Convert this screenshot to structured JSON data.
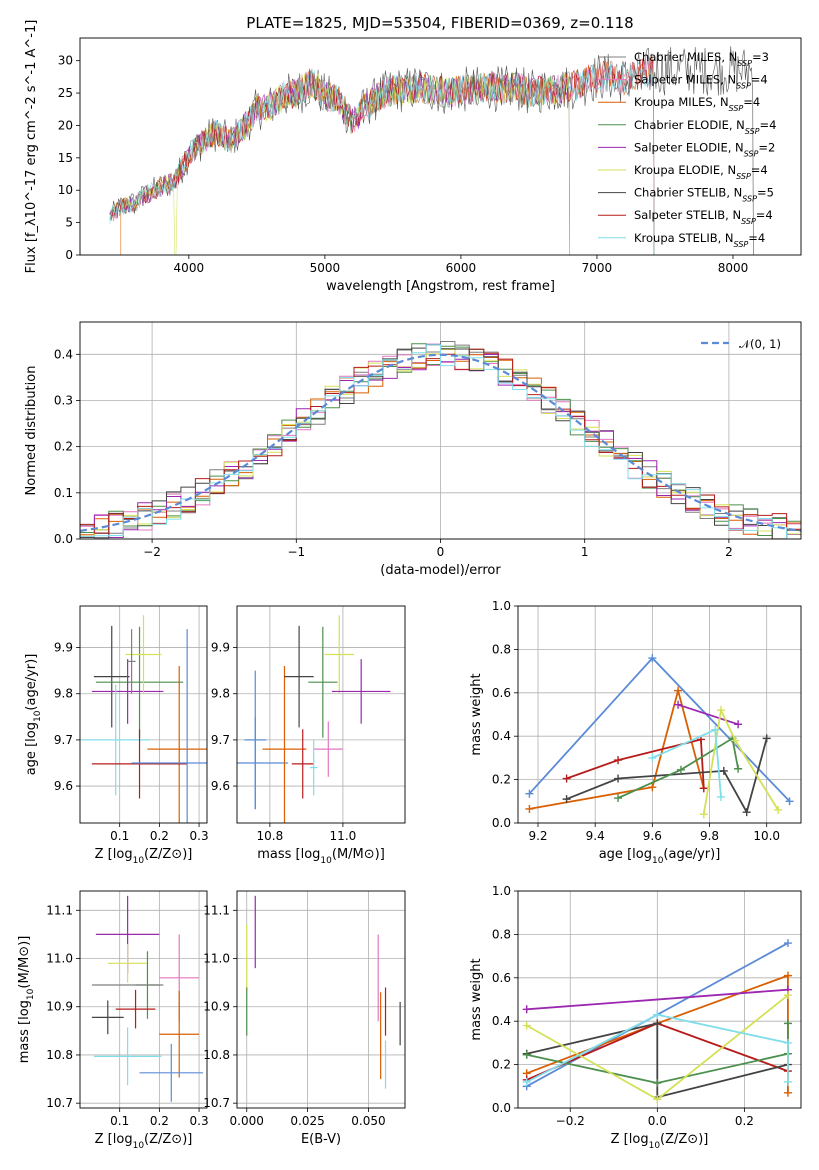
{
  "figure_title": "PLATE=1825, MJD=53504, FIBERID=0369, z=0.118",
  "colors": {
    "Chabrier MILES": "#7f7f7f",
    "Salpeter MILES": "#e377c2",
    "Kroupa MILES": "#d95f02",
    "Chabrier ELODIE": "#4d8f4d",
    "Salpeter ELODIE": "#9c27b0",
    "Kroupa ELODIE": "#d4e157",
    "Chabrier STELIB": "#444444",
    "Salpeter STELIB": "#b71c1c",
    "Kroupa STELIB": "#80deea",
    "mass_series_blue": "#5b8bd6",
    "gaussian": "#5b8bd6"
  },
  "chart_data": [
    {
      "type": "line",
      "panel": "spectrum",
      "xlabel": "wavelength [Angstrom, rest frame]",
      "ylabel": "Flux [f_λ10^-17 erg cm^-2 s^-1 A^-1]",
      "xlim": [
        3200,
        8500
      ],
      "ylim": [
        0,
        33.5
      ],
      "xticks": [
        "4000",
        "5000",
        "6000",
        "7000",
        "8000"
      ],
      "yticks": [
        "0",
        "5",
        "10",
        "15",
        "20",
        "25",
        "30"
      ],
      "grid": false,
      "legend_position": "right",
      "continuum": {
        "x": [
          3400,
          3500,
          3600,
          3700,
          3800,
          3900,
          4000,
          4100,
          4200,
          4300,
          4400,
          4500,
          4600,
          4700,
          4800,
          4900,
          5000,
          5100,
          5200,
          5300,
          5400,
          5500,
          5600,
          5700,
          5800,
          5900,
          6000,
          6100,
          6200,
          6300,
          6400,
          6500,
          6600,
          6700,
          6800,
          6900,
          7000,
          7100,
          7200,
          7300,
          7400,
          7500
        ],
        "y": [
          5.5,
          7.5,
          8.0,
          9.5,
          10.5,
          11.5,
          15.5,
          17.5,
          19.0,
          17.5,
          19.5,
          22.5,
          23.0,
          24.5,
          25.0,
          26.5,
          24.5,
          24.0,
          20.5,
          23.0,
          24.5,
          25.5,
          25.5,
          26.0,
          25.5,
          25.0,
          25.5,
          25.5,
          26.0,
          25.5,
          26.0,
          25.0,
          25.5,
          25.5,
          26.0,
          26.5,
          27.5,
          27.5,
          27.0,
          27.5,
          28.5,
          28.5
        ]
      },
      "series": [
        {
          "name": "Chabrier MILES, N_SSP=3",
          "line": "thin",
          "x_end": 7420
        },
        {
          "name": "Salpeter MILES, N_SSP=4",
          "x_end": 7420
        },
        {
          "name": "Kroupa MILES, N_SSP=4",
          "x_start": 3500,
          "x_end": 7420
        },
        {
          "name": "Chabrier ELODIE, N_SSP=4",
          "x_end": 6800
        },
        {
          "name": "Salpeter ELODIE, N_SSP=2",
          "x_end": 6800
        },
        {
          "name": "Kroupa ELODIE, N_SSP=4",
          "x_end": 6800,
          "dip_at": 3900
        },
        {
          "name": "Chabrier STELIB, N_SSP=5",
          "x_end": 8150
        },
        {
          "name": "Salpeter STELIB, N_SSP=4",
          "x_end": 7420
        },
        {
          "name": "Kroupa STELIB, N_SSP=4",
          "x_end": 7420
        }
      ]
    },
    {
      "type": "line",
      "panel": "residuals",
      "xlabel": "(data-model)/error",
      "ylabel": "Normed distribution",
      "xlim": [
        -2.5,
        2.5
      ],
      "ylim": [
        0,
        0.47
      ],
      "xticks": [
        "−2",
        "−1",
        "0",
        "1",
        "2"
      ],
      "yticks": [
        "0.0",
        "0.1",
        "0.2",
        "0.3",
        "0.4"
      ],
      "grid": true,
      "legend": "𝒩(0, 1)",
      "legend_position": "top-right",
      "histogram_style": "step, one per model, 0.1-wide bins"
    },
    {
      "type": "scatter",
      "panel": "age-vs-Z",
      "xlabel": "Z [log10(Z/Z⊙)]",
      "ylabel": "age [log10(age/yr)]",
      "xlim": [
        0.0,
        0.32
      ],
      "ylim": [
        9.52,
        9.99
      ],
      "xticks": [
        "0.1",
        "0.2",
        "0.3"
      ],
      "yticks": [
        "9.6",
        "9.7",
        "9.8",
        "9.9"
      ],
      "grid": true,
      "points": [
        {
          "color": "Chabrier STELIB",
          "x": 0.08,
          "y": 9.837,
          "xerr": 0.045,
          "yerr": 0.11
        },
        {
          "color": "Chabrier ELODIE",
          "x": 0.15,
          "y": 9.825,
          "xerr": 0.11,
          "yerr": 0.12
        },
        {
          "color": "Salpeter ELODIE",
          "x": 0.12,
          "y": 9.805,
          "xerr": 0.09,
          "yerr": 0.07
        },
        {
          "color": "Kroupa ELODIE",
          "x": 0.16,
          "y": 9.885,
          "xerr": 0.045,
          "yerr": 0.085
        },
        {
          "color": "Chabrier MILES",
          "x": 0.13,
          "y": 9.87,
          "xerr": 0.01,
          "yerr": 0.07
        },
        {
          "color": "Kroupa STELIB",
          "x": 0.09,
          "y": 9.7,
          "xerr": 0.085,
          "yerr": 0.12
        },
        {
          "color": "Kroupa MILES",
          "x": 0.25,
          "y": 9.68,
          "xerr": 0.08,
          "yerr": 0.18
        },
        {
          "color": "Salpeter STELIB",
          "x": 0.15,
          "y": 9.648,
          "xerr": 0.12,
          "yerr": 0.075
        },
        {
          "color": "mass_series_blue",
          "x": 0.27,
          "y": 9.65,
          "xerr": 0.14,
          "yerr": 0.29
        }
      ]
    },
    {
      "type": "scatter",
      "panel": "age-vs-mass",
      "xlabel": "mass [log10(M/M⊙)]",
      "ylabel": "",
      "xlim": [
        10.71,
        11.17
      ],
      "ylim": [
        9.52,
        9.99
      ],
      "xticks": [
        "10.8",
        "11.0"
      ],
      "yticks": [
        "9.6",
        "9.7",
        "9.8",
        "9.9"
      ],
      "grid": true,
      "points": [
        {
          "color": "mass_series_blue",
          "x": 10.76,
          "y": 9.7,
          "xerr": 0.03,
          "yerr": 0.15
        },
        {
          "color": "mass_series_blue",
          "x": 10.76,
          "y": 9.65,
          "xerr": 0.09,
          "yerr": 0.1
        },
        {
          "color": "Kroupa MILES",
          "x": 10.84,
          "y": 9.68,
          "xerr": 0.06,
          "yerr": 0.18
        },
        {
          "color": "Salpeter STELIB",
          "x": 10.89,
          "y": 9.648,
          "xerr": 0.03,
          "yerr": 0.075
        },
        {
          "color": "Chabrier STELIB",
          "x": 10.88,
          "y": 9.837,
          "xerr": 0.04,
          "yerr": 0.11
        },
        {
          "color": "Chabrier ELODIE",
          "x": 10.945,
          "y": 9.825,
          "xerr": 0.04,
          "yerr": 0.12
        },
        {
          "color": "Kroupa ELODIE",
          "x": 10.99,
          "y": 9.885,
          "xerr": 0.04,
          "yerr": 0.085
        },
        {
          "color": "Salpeter ELODIE",
          "x": 11.05,
          "y": 9.805,
          "xerr": 0.08,
          "yerr": 0.07
        },
        {
          "color": "Salpeter MILES",
          "x": 10.96,
          "y": 9.68,
          "xerr": 0.04,
          "yerr": 0.06
        },
        {
          "color": "Kroupa STELIB",
          "x": 10.92,
          "y": 9.64,
          "xerr": 0.01,
          "yerr": 0.06
        }
      ]
    },
    {
      "type": "line",
      "panel": "mass-weight-vs-age",
      "xlabel": "age [log10(age/yr)]",
      "ylabel": "mass weight",
      "xlim": [
        9.13,
        10.12
      ],
      "ylim": [
        0,
        1.0
      ],
      "xticks": [
        "9.2",
        "9.4",
        "9.6",
        "9.8",
        "10.0"
      ],
      "yticks": [
        "0.0",
        "0.2",
        "0.4",
        "0.6",
        "0.8",
        "1.0"
      ],
      "grid": true,
      "series": [
        {
          "color": "mass_series_blue",
          "x": [
            9.17,
            9.6,
            10.08
          ],
          "y": [
            0.135,
            0.76,
            0.1
          ]
        },
        {
          "color": "Kroupa MILES",
          "x": [
            9.17,
            9.6,
            9.69,
            9.78
          ],
          "y": [
            0.065,
            0.165,
            0.61,
            0.16
          ]
        },
        {
          "color": "Salpeter STELIB",
          "x": [
            9.3,
            9.48,
            9.77,
            9.78
          ],
          "y": [
            0.205,
            0.29,
            0.385,
            0.16
          ]
        },
        {
          "color": "Chabrier STELIB",
          "x": [
            9.3,
            9.48,
            9.85,
            9.93,
            10.0
          ],
          "y": [
            0.11,
            0.205,
            0.24,
            0.05,
            0.39
          ]
        },
        {
          "color": "Chabrier ELODIE",
          "x": [
            9.48,
            9.7,
            9.88,
            9.9
          ],
          "y": [
            0.115,
            0.245,
            0.39,
            0.25
          ]
        },
        {
          "color": "Salpeter ELODIE",
          "x": [
            9.69,
            9.9
          ],
          "y": [
            0.545,
            0.455
          ]
        },
        {
          "color": "Kroupa ELODIE",
          "x": [
            9.78,
            9.84,
            9.89,
            10.04
          ],
          "y": [
            0.04,
            0.52,
            0.38,
            0.06
          ]
        },
        {
          "color": "Kroupa STELIB",
          "x": [
            9.6,
            9.82,
            9.84
          ],
          "y": [
            0.3,
            0.43,
            0.12
          ]
        }
      ]
    },
    {
      "type": "scatter",
      "panel": "mass-vs-Z",
      "xlabel": "Z [log10(Z/Z⊙)]",
      "ylabel": "mass [log10(M/M⊙)]",
      "xlim": [
        0.0,
        0.32
      ],
      "ylim": [
        10.69,
        11.14
      ],
      "xticks": [
        "0.1",
        "0.2",
        "0.3"
      ],
      "yticks": [
        "10.7",
        "10.8",
        "10.9",
        "11.0",
        "11.1"
      ],
      "grid": true,
      "points": [
        {
          "color": "Salpeter ELODIE",
          "x": 0.12,
          "y": 11.05,
          "xerr": 0.08,
          "yerr": 0.08
        },
        {
          "color": "Kroupa ELODIE",
          "x": 0.12,
          "y": 10.99,
          "xerr": 0.05,
          "yerr": 0.04
        },
        {
          "color": "Chabrier ELODIE",
          "x": 0.17,
          "y": 10.945,
          "xerr": 0.03,
          "yerr": 0.07
        },
        {
          "color": "Salpeter MILES",
          "x": 0.25,
          "y": 10.96,
          "xerr": 0.05,
          "yerr": 0.09
        },
        {
          "color": "Chabrier MILES",
          "x": 0.12,
          "y": 10.945,
          "xerr": 0.09,
          "yerr": 0.0
        },
        {
          "color": "Salpeter STELIB",
          "x": 0.14,
          "y": 10.895,
          "xerr": 0.05,
          "yerr": 0.04
        },
        {
          "color": "Chabrier STELIB",
          "x": 0.07,
          "y": 10.878,
          "xerr": 0.04,
          "yerr": 0.035
        },
        {
          "color": "Kroupa MILES",
          "x": 0.25,
          "y": 10.843,
          "xerr": 0.05,
          "yerr": 0.09
        },
        {
          "color": "Kroupa STELIB",
          "x": 0.12,
          "y": 10.797,
          "xerr": 0.085,
          "yerr": 0.06
        },
        {
          "color": "mass_series_blue",
          "x": 0.23,
          "y": 10.763,
          "xerr": 0.08,
          "yerr": 0.06
        }
      ]
    },
    {
      "type": "scatter",
      "panel": "mass-vs-EBV",
      "xlabel": "E(B-V)",
      "ylabel": "",
      "xlim": [
        -0.004,
        0.065
      ],
      "ylim": [
        10.69,
        11.14
      ],
      "xticks": [
        "0.000",
        "0.025",
        "0.050"
      ],
      "yticks": [
        "10.7",
        "10.8",
        "10.9",
        "11.0",
        "11.1"
      ],
      "grid": true,
      "points": [
        {
          "color": "Salpeter ELODIE",
          "x": 0.0035,
          "y": 11.055,
          "yerr": 0.075
        },
        {
          "color": "Kroupa ELODIE",
          "x": 0.0,
          "y": 11.0,
          "yerr": 0.07
        },
        {
          "color": "Chabrier ELODIE",
          "x": 0.0,
          "y": 10.89,
          "yerr": 0.05
        },
        {
          "color": "Salpeter MILES",
          "x": 0.054,
          "y": 10.96,
          "yerr": 0.09
        },
        {
          "color": "Kroupa MILES",
          "x": 0.055,
          "y": 10.84,
          "yerr": 0.09
        },
        {
          "color": "Salpeter STELIB",
          "x": 0.057,
          "y": 10.89,
          "yerr": 0.05
        },
        {
          "color": "Chabrier STELIB",
          "x": 0.063,
          "y": 10.865,
          "yerr": 0.045
        },
        {
          "color": "Kroupa STELIB",
          "x": 0.057,
          "y": 10.78,
          "yerr": 0.05
        }
      ]
    },
    {
      "type": "line",
      "panel": "mass-weight-vs-Z",
      "xlabel": "Z [log10(Z/Z⊙)]",
      "ylabel": "mass weight",
      "xlim": [
        -0.32,
        0.33
      ],
      "ylim": [
        0,
        1.0
      ],
      "xticks": [
        "−0.2",
        "0.0",
        "0.2"
      ],
      "yticks": [
        "0.0",
        "0.2",
        "0.4",
        "0.6",
        "0.8",
        "1.0"
      ],
      "grid": true,
      "series": [
        {
          "color": "mass_series_blue",
          "x": [
            -0.3,
            0.0,
            0.3
          ],
          "y": [
            0.1,
            0.43,
            0.76
          ]
        },
        {
          "color": "Kroupa MILES",
          "x": [
            -0.3,
            0.0,
            0.3,
            0.3
          ],
          "y": [
            0.16,
            0.39,
            0.61,
            0.07
          ]
        },
        {
          "color": "Salpeter STELIB",
          "x": [
            -0.3,
            0.0,
            0.3
          ],
          "y": [
            0.13,
            0.39,
            0.17
          ]
        },
        {
          "color": "Chabrier STELIB",
          "x": [
            -0.3,
            0.0,
            0.0,
            0.3
          ],
          "y": [
            0.25,
            0.39,
            0.05,
            0.2
          ]
        },
        {
          "color": "Chabrier ELODIE",
          "x": [
            -0.3,
            0.0,
            0.3,
            0.3
          ],
          "y": [
            0.245,
            0.115,
            0.25,
            0.39
          ]
        },
        {
          "color": "Salpeter ELODIE",
          "x": [
            -0.3,
            0.3
          ],
          "y": [
            0.455,
            0.545
          ]
        },
        {
          "color": "Kroupa ELODIE",
          "x": [
            -0.3,
            0.0,
            0.3
          ],
          "y": [
            0.38,
            0.04,
            0.52
          ]
        },
        {
          "color": "Kroupa STELIB",
          "x": [
            -0.3,
            0.0,
            0.3,
            0.3
          ],
          "y": [
            0.12,
            0.43,
            0.3,
            0.12
          ]
        }
      ]
    }
  ]
}
